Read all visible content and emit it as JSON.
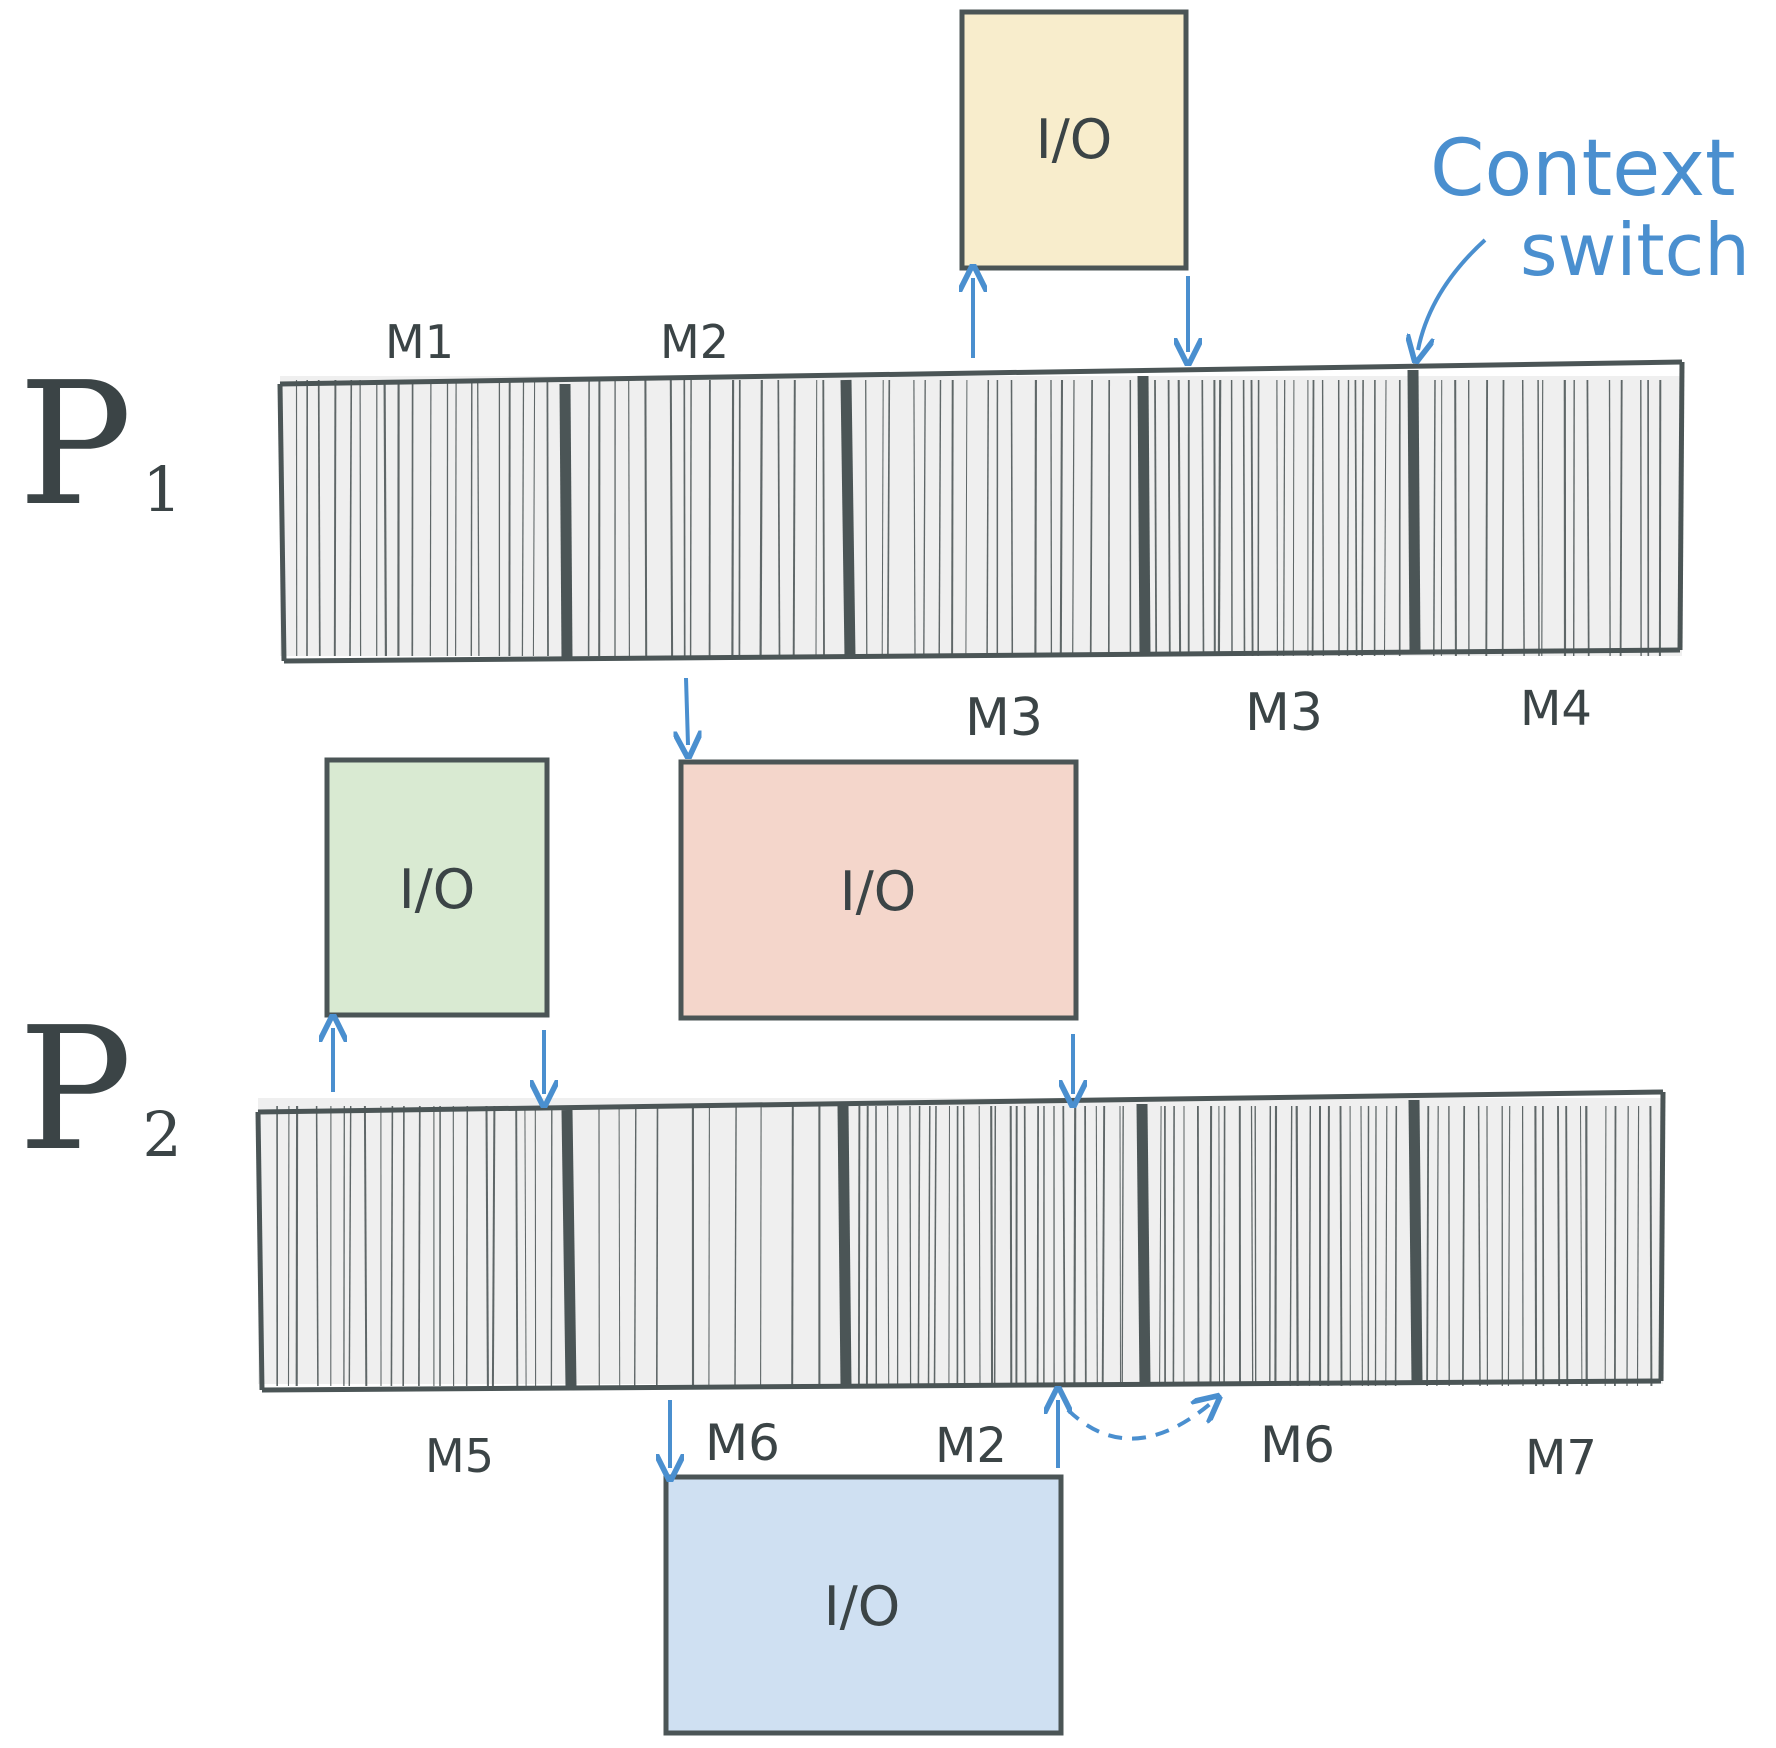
{
  "processes": [
    {
      "id": "p1",
      "label": "P",
      "sub": "1",
      "segments": [
        {
          "label": "M1",
          "lines": 20
        },
        {
          "label": "M2",
          "lines": 16
        },
        {
          "label": "M3",
          "lines": 18
        },
        {
          "label": "M3",
          "lines": 24
        },
        {
          "label": "M4",
          "lines": 17
        }
      ]
    },
    {
      "id": "p2",
      "label": "P",
      "sub": "2",
      "segments": [
        {
          "label": "M5",
          "lines": 22
        },
        {
          "label": "M6",
          "lines": 10
        },
        {
          "label": "M2",
          "lines": 28
        },
        {
          "label": "M6",
          "lines": 25
        },
        {
          "label": "M7",
          "lines": 20
        }
      ]
    }
  ],
  "io_blocks": [
    {
      "label": "I/O",
      "color": "#f8edcc"
    },
    {
      "label": "I/O",
      "color": "#d9ead2"
    },
    {
      "label": "I/O",
      "color": "#f4d6cb"
    },
    {
      "label": "I/O",
      "color": "#cfe0f2"
    }
  ],
  "annotation": {
    "line1": "Context",
    "line2": "switch"
  },
  "colors": {
    "stroke": "#4b5556",
    "bar": "#efefef",
    "arrow": "#4a8fcf"
  }
}
